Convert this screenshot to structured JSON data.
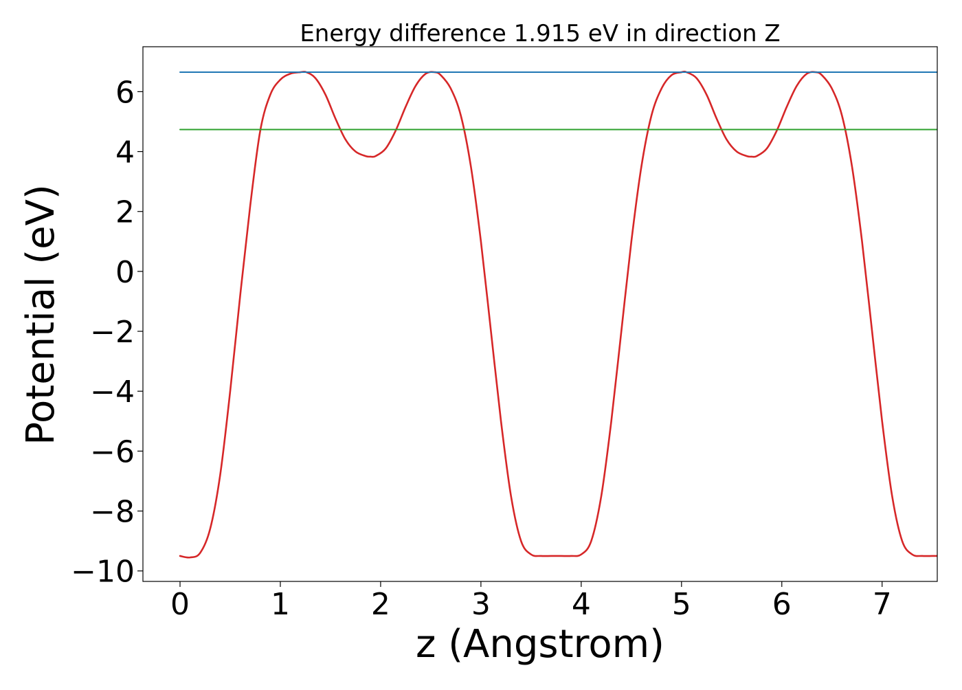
{
  "chart_data": {
    "type": "line",
    "title": "Energy difference 1.915 eV in direction Z",
    "xlabel": "z (Angstrom)",
    "ylabel": "Potential (eV)",
    "xlim": [
      -0.37,
      7.55
    ],
    "ylim": [
      -10.35,
      7.5
    ],
    "x_ticks": [
      0,
      1,
      2,
      3,
      4,
      5,
      6,
      7
    ],
    "x_tick_labels": [
      "0",
      "1",
      "2",
      "3",
      "4",
      "5",
      "6",
      "7"
    ],
    "y_ticks": [
      -10,
      -8,
      -6,
      -4,
      -2,
      0,
      2,
      4,
      6
    ],
    "y_tick_labels": [
      "−10",
      "−8",
      "−6",
      "−4",
      "−2",
      "0",
      "2",
      "4",
      "6"
    ],
    "grid": false,
    "legend": false,
    "series": [
      {
        "color": "#d62728",
        "style": "solid",
        "x": [
          0.0,
          0.1,
          0.2,
          0.3,
          0.4,
          0.5,
          0.6,
          0.7,
          0.8,
          0.9,
          1.0,
          1.1,
          1.2,
          1.26,
          1.35,
          1.45,
          1.55,
          1.65,
          1.75,
          1.85,
          1.9,
          1.95,
          2.05,
          2.15,
          2.25,
          2.35,
          2.45,
          2.54,
          2.6,
          2.7,
          2.8,
          2.9,
          3.0,
          3.1,
          3.2,
          3.3,
          3.4,
          3.5,
          3.6,
          3.7,
          3.8,
          3.9,
          4.0,
          4.1,
          4.2,
          4.3,
          4.4,
          4.5,
          4.6,
          4.7,
          4.8,
          4.9,
          5.0,
          5.05,
          5.15,
          5.25,
          5.35,
          5.45,
          5.55,
          5.65,
          5.7,
          5.75,
          5.85,
          5.95,
          6.05,
          6.15,
          6.25,
          6.34,
          6.4,
          6.5,
          6.6,
          6.7,
          6.8,
          6.9,
          7.0,
          7.1,
          7.2,
          7.3,
          7.4,
          7.5,
          7.55
        ],
        "y": [
          -9.5,
          -9.55,
          -9.4,
          -8.6,
          -6.8,
          -4.0,
          -0.8,
          2.2,
          4.7,
          5.9,
          6.4,
          6.6,
          6.65,
          6.65,
          6.45,
          5.9,
          5.1,
          4.4,
          4.0,
          3.85,
          3.83,
          3.85,
          4.1,
          4.7,
          5.5,
          6.2,
          6.6,
          6.65,
          6.55,
          6.1,
          5.2,
          3.5,
          1.0,
          -2.0,
          -5.0,
          -7.5,
          -9.0,
          -9.45,
          -9.5,
          -9.5,
          -9.5,
          -9.5,
          -9.45,
          -9.0,
          -7.5,
          -5.0,
          -2.0,
          1.0,
          3.5,
          5.2,
          6.1,
          6.55,
          6.65,
          6.65,
          6.45,
          5.9,
          5.1,
          4.4,
          4.0,
          3.85,
          3.83,
          3.85,
          4.1,
          4.7,
          5.5,
          6.2,
          6.6,
          6.65,
          6.55,
          6.1,
          5.2,
          3.5,
          1.0,
          -2.0,
          -5.0,
          -7.5,
          -9.0,
          -9.45,
          -9.5,
          -9.5,
          -9.5
        ]
      },
      {
        "color": "#1f77b4",
        "style": "solid",
        "x": [
          0.0,
          7.55
        ],
        "y": [
          6.65,
          6.65
        ]
      },
      {
        "color": "#2ca02c",
        "style": "solid",
        "x": [
          0.0,
          7.55
        ],
        "y": [
          4.735,
          4.735
        ]
      }
    ]
  }
}
